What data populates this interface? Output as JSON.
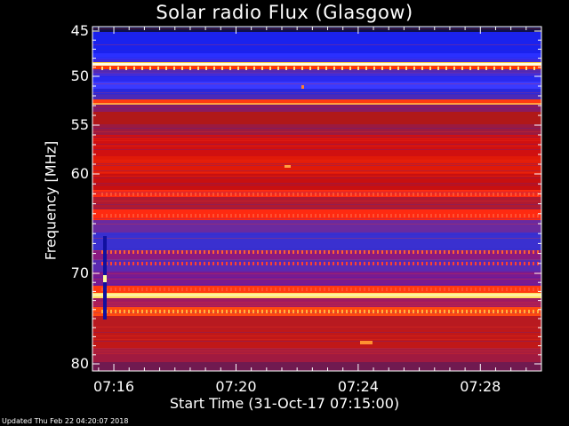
{
  "chart_data": {
    "type": "heatmap",
    "title": "Solar radio Flux (Glasgow)",
    "ylabel": "Frequency [MHz]",
    "xlabel": "Start Time (31-Oct-17 07:15:00)",
    "ylim": [
      45,
      80
    ],
    "y_inverted": true,
    "y_ticks": [
      "45",
      "50",
      "55",
      "60",
      "70",
      "80"
    ],
    "y_tick_values": [
      45,
      50,
      55,
      60,
      70,
      80
    ],
    "x_ticks": [
      "07:16",
      "07:20",
      "07:24",
      "07:28"
    ],
    "x_tick_minutes": [
      16,
      20,
      24,
      28
    ],
    "xlim_minutes": [
      15.3,
      30.0
    ],
    "colormap": [
      "#000000",
      "#1a1ae6",
      "#6a2aa0",
      "#c81010",
      "#ff2a00",
      "#ffd040",
      "#ffffff"
    ],
    "grid": false
  },
  "footer": {
    "updated": "Updated Thu Feb 22 04:20:07 2018"
  }
}
